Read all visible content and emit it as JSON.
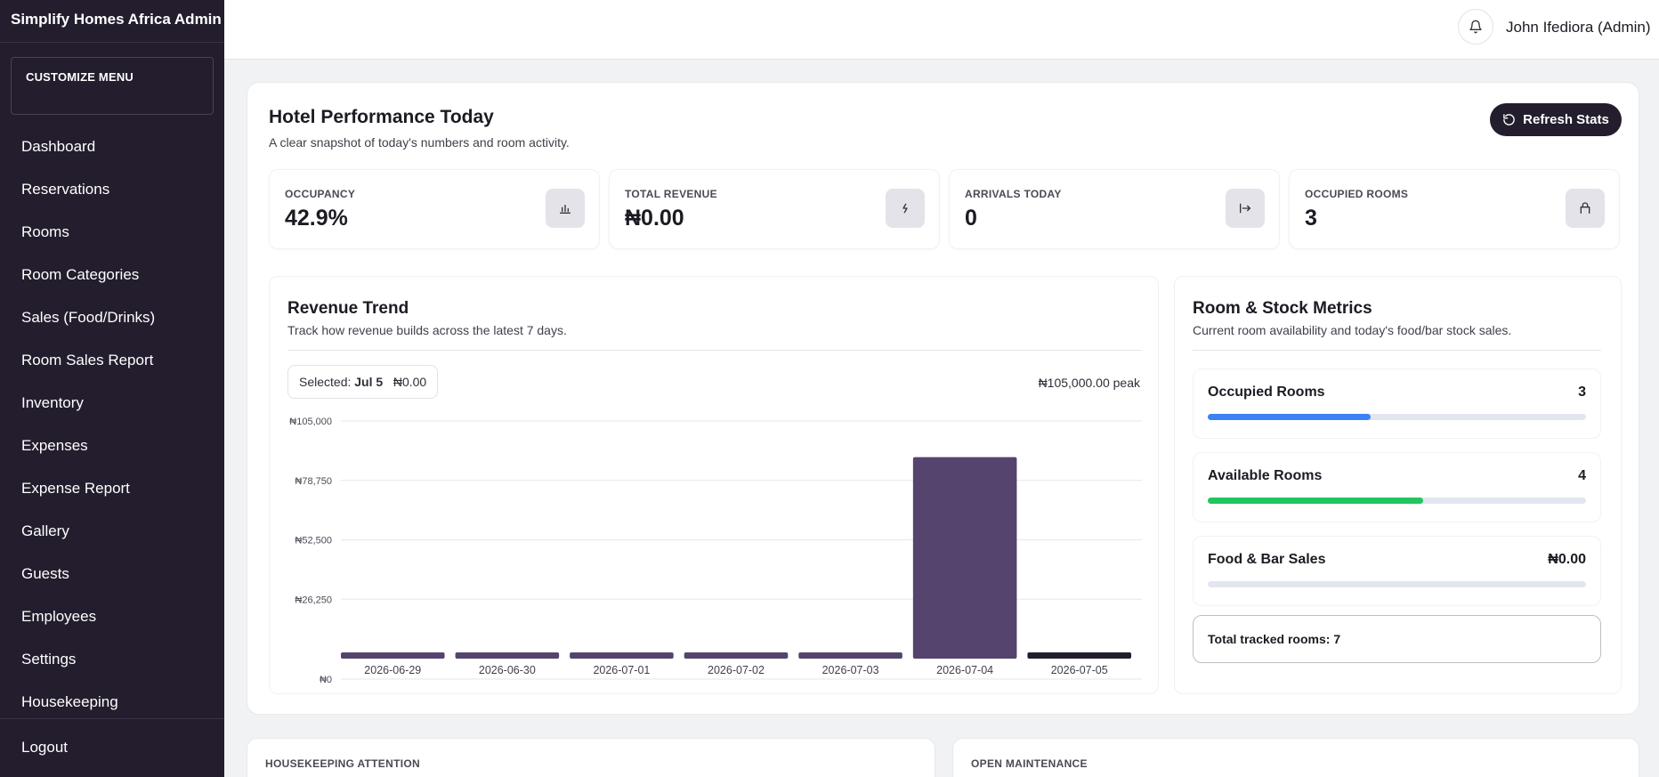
{
  "sidebar": {
    "brand": "Simplify Homes Africa Admin",
    "customize_label": "CUSTOMIZE MENU",
    "items": [
      {
        "label": "Dashboard"
      },
      {
        "label": "Reservations"
      },
      {
        "label": "Rooms"
      },
      {
        "label": "Room Categories"
      },
      {
        "label": "Sales (Food/Drinks)"
      },
      {
        "label": "Room Sales Report"
      },
      {
        "label": "Inventory"
      },
      {
        "label": "Expenses"
      },
      {
        "label": "Expense Report"
      },
      {
        "label": "Gallery"
      },
      {
        "label": "Guests"
      },
      {
        "label": "Employees"
      },
      {
        "label": "Settings"
      },
      {
        "label": "Housekeeping"
      }
    ],
    "logout_label": "Logout"
  },
  "topbar": {
    "user_name": "John Ifediora (Admin)",
    "bell_icon": "bell-icon"
  },
  "header": {
    "title": "Hotel Performance Today",
    "subtitle": "A clear snapshot of today's numbers and room activity.",
    "refresh_label": "Refresh Stats"
  },
  "stats": [
    {
      "label": "OCCUPANCY",
      "value": "42.9%",
      "icon": "bar-chart-icon"
    },
    {
      "label": "TOTAL REVENUE",
      "value": "₦0.00",
      "icon": "bolt-icon"
    },
    {
      "label": "ARRIVALS TODAY",
      "value": "0",
      "icon": "arrow-in-icon"
    },
    {
      "label": "OCCUPIED ROOMS",
      "value": "3",
      "icon": "lock-icon"
    }
  ],
  "revenue": {
    "title": "Revenue Trend",
    "subtitle": "Track how revenue builds across the latest 7 days.",
    "selected_prefix": "Selected:",
    "selected_date": "Jul 5",
    "selected_value": "₦0.00",
    "peak_text": "₦105,000.00 peak"
  },
  "chart_data": {
    "type": "bar",
    "categories": [
      "2026-06-29",
      "2026-06-30",
      "2026-07-01",
      "2026-07-02",
      "2026-07-03",
      "2026-07-04",
      "2026-07-05"
    ],
    "values": [
      0,
      0,
      0,
      0,
      0,
      89000,
      0
    ],
    "ylim": [
      0,
      105000
    ],
    "yticks": [
      "₦105,000",
      "₦78,750",
      "₦52,500",
      "₦26,250",
      "₦0"
    ],
    "ytick_values": [
      105000,
      78750,
      52500,
      26250,
      0
    ],
    "selected_index": 6,
    "bar_color": "#54446e",
    "selected_color": "#231d2d",
    "grid": true
  },
  "metrics": {
    "title": "Room & Stock Metrics",
    "subtitle": "Current room availability and today's food/bar stock sales.",
    "items": [
      {
        "label": "Occupied Rooms",
        "value": "3",
        "fraction": 0.43,
        "color": "#3b82f6"
      },
      {
        "label": "Available Rooms",
        "value": "4",
        "fraction": 0.57,
        "color": "#22c55e"
      },
      {
        "label": "Food & Bar Sales",
        "value": "₦0.00",
        "fraction": 0,
        "color": "#94a3b8"
      }
    ],
    "total_text": "Total tracked rooms: 7"
  },
  "bottom": {
    "housekeeping_label": "HOUSEKEEPING ATTENTION",
    "maintenance_label": "OPEN MAINTENANCE"
  }
}
